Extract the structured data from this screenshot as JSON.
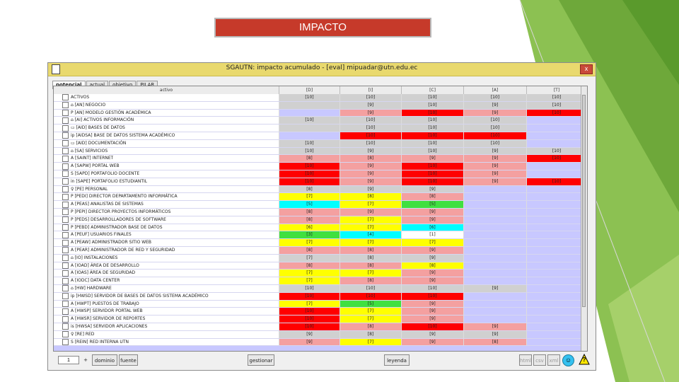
{
  "slide": {
    "title": "IMPACTO"
  },
  "window": {
    "title": "SGAUTN: impacto acumulado  -  [eval]  mipuadar@utn.edu.ec",
    "close_label": "x"
  },
  "tabs": [
    "potencial",
    "actual",
    "objetivo",
    "PILAR"
  ],
  "table": {
    "headers": [
      "activo",
      "[D]",
      "[I]",
      "[C]",
      "[A]",
      "[T]"
    ],
    "rows": [
      {
        "label": "ACTIVOS",
        "vals": [
          "[10]",
          "[10]",
          "[10]",
          "[10]",
          "[10]"
        ],
        "colors": [
          "#d0d0d0",
          "#d0d0d0",
          "#d0d0d0",
          "#d0d0d0",
          "#d0d0d0"
        ]
      },
      {
        "label": "  ⌂ [AN] NEGOCIO",
        "vals": [
          "",
          "[9]",
          "[10]",
          "[9]",
          "[10]"
        ],
        "colors": [
          "#d0d0d0",
          "#d0d0d0",
          "#d0d0d0",
          "#d0d0d0",
          "#d0d0d0"
        ]
      },
      {
        "label": "      P  [AN] MODELO GESTIÓN ACADÉMICA",
        "vals": [
          "",
          "[9]",
          "[10]",
          "[9]",
          "[10]"
        ],
        "colors": [
          "#c8c8ff",
          "#f4a0a0",
          "#ff0000",
          "#f4a0a0",
          "#ff0000"
        ]
      },
      {
        "label": "  ⌂ [AI] ACTIVOS INFORMACIÓN",
        "vals": [
          "[10]",
          "[10]",
          "[10]",
          "[10]",
          ""
        ],
        "colors": [
          "#d0d0d0",
          "#d0d0d0",
          "#d0d0d0",
          "#d0d0d0",
          "#c8c8ff"
        ]
      },
      {
        "label": "    ▭ [AID] BASES DE DATOS",
        "vals": [
          "",
          "[10]",
          "[10]",
          "[10]",
          ""
        ],
        "colors": [
          "#d0d0d0",
          "#d0d0d0",
          "#d0d0d0",
          "#d0d0d0",
          "#c8c8ff"
        ]
      },
      {
        "label": "        ip  [AIDSA] BASE DE DATOS SISTEMA ACADÉMICO",
        "vals": [
          "",
          "[10]",
          "[10]",
          "[10]",
          ""
        ],
        "colors": [
          "#c8c8ff",
          "#ff0000",
          "#ff0000",
          "#ff0000",
          "#c8c8ff"
        ]
      },
      {
        "label": "    ▭ [AID] DOCUMENTACIÓN",
        "vals": [
          "[10]",
          "[10]",
          "[10]",
          "[10]",
          ""
        ],
        "colors": [
          "#d0d0d0",
          "#d0d0d0",
          "#d0d0d0",
          "#d0d0d0",
          "#c8c8ff"
        ]
      },
      {
        "label": "  ⌂ [SA] SERVICIOS",
        "vals": [
          "[10]",
          "[9]",
          "[10]",
          "[9]",
          "[10]"
        ],
        "colors": [
          "#d0d0d0",
          "#d0d0d0",
          "#d0d0d0",
          "#d0d0d0",
          "#d0d0d0"
        ]
      },
      {
        "label": "      A  [SAINT] INTERNET",
        "vals": [
          "[8]",
          "[8]",
          "[9]",
          "[9]",
          "[10]"
        ],
        "colors": [
          "#f4a0a0",
          "#f4a0a0",
          "#f4a0a0",
          "#f4a0a0",
          "#ff0000"
        ]
      },
      {
        "label": "      A  [SAPW] PORTAL WEB",
        "vals": [
          "[10]",
          "[9]",
          "[10]",
          "[9]",
          ""
        ],
        "colors": [
          "#ff0000",
          "#f4a0a0",
          "#ff0000",
          "#f4a0a0",
          "#c8c8ff"
        ]
      },
      {
        "label": "      S  [SAPD] PORTAFOLIO DOCENTE",
        "vals": [
          "[10]",
          "[9]",
          "[10]",
          "[9]",
          ""
        ],
        "colors": [
          "#ff0000",
          "#f4a0a0",
          "#ff0000",
          "#f4a0a0",
          "#c8c8ff"
        ]
      },
      {
        "label": "      in [SAPE] PORTAFOLIO ESTUDIANTIL",
        "vals": [
          "[10]",
          "[9]",
          "[10]",
          "[9]",
          "[10]"
        ],
        "colors": [
          "#ff0000",
          "#f4a0a0",
          "#ff0000",
          "#f4a0a0",
          "#ff0000"
        ]
      },
      {
        "label": "  ♀ [PE] PERSONAL",
        "vals": [
          "[8]",
          "[9]",
          "[9]",
          "",
          ""
        ],
        "colors": [
          "#d0d0d0",
          "#d0d0d0",
          "#d0d0d0",
          "#c8c8ff",
          "#c8c8ff"
        ]
      },
      {
        "label": "      P  [PEDI] DIRECTOR DEPARTAMENTO INFORMÁTICA",
        "vals": [
          "[7]",
          "[8]",
          "[8]",
          "",
          ""
        ],
        "colors": [
          "#ffff00",
          "#ffff00",
          "#f4a0a0",
          "#c8c8ff",
          "#c8c8ff"
        ]
      },
      {
        "label": "      A  [PEAS] ANALISTAS DE SISTEMAS",
        "vals": [
          "[5]",
          "[7]",
          "[5]",
          "",
          ""
        ],
        "colors": [
          "#00ffff",
          "#ffff00",
          "#40e040",
          "#c8c8ff",
          "#c8c8ff"
        ]
      },
      {
        "label": "      P  [PEPI] DIRECTOR PROYECTOS INFORMÁTICOS",
        "vals": [
          "[8]",
          "[9]",
          "[9]",
          "",
          ""
        ],
        "colors": [
          "#f4a0a0",
          "#f4a0a0",
          "#f4a0a0",
          "#c8c8ff",
          "#c8c8ff"
        ]
      },
      {
        "label": "      P  [PEDS] DESARROLLADORES DE SOFTWARE",
        "vals": [
          "[8]",
          "[7]",
          "[9]",
          "",
          ""
        ],
        "colors": [
          "#f4a0a0",
          "#ffff00",
          "#f4a0a0",
          "#c8c8ff",
          "#c8c8ff"
        ]
      },
      {
        "label": "      P  [PEBD] ADMINISTRADOR BASE DE DATOS",
        "vals": [
          "[6]",
          "[7]",
          "[6]",
          "",
          ""
        ],
        "colors": [
          "#ffff00",
          "#ffff00",
          "#00ffff",
          "#c8c8ff",
          "#c8c8ff"
        ]
      },
      {
        "label": "      A  [PEUF] USUARIOS FINALES",
        "vals": [
          "[3]",
          "[4]",
          "[1]",
          "",
          ""
        ],
        "colors": [
          "#40e040",
          "#00ffff",
          "#ffffff",
          "#c8c8ff",
          "#c8c8ff"
        ]
      },
      {
        "label": "      A  [PEAW] ADMINISTRADOR SITIO WEB",
        "vals": [
          "[7]",
          "[7]",
          "[7]",
          "",
          ""
        ],
        "colors": [
          "#ffff00",
          "#ffff00",
          "#ffff00",
          "#c8c8ff",
          "#c8c8ff"
        ]
      },
      {
        "label": "      A  [PEAR] ADMINISTRADOR DE RED Y SEGURIDAD",
        "vals": [
          "[8]",
          "[8]",
          "[9]",
          "",
          ""
        ],
        "colors": [
          "#f4a0a0",
          "#f4a0a0",
          "#f4a0a0",
          "#c8c8ff",
          "#c8c8ff"
        ]
      },
      {
        "label": "  ⌂ [IO] INSTALACIONES",
        "vals": [
          "[7]",
          "[8]",
          "[9]",
          "",
          ""
        ],
        "colors": [
          "#d0d0d0",
          "#d0d0d0",
          "#d0d0d0",
          "#c8c8ff",
          "#c8c8ff"
        ]
      },
      {
        "label": "      A  [IOAD] ÁREA DE DESARROLLO",
        "vals": [
          "[8]",
          "[8]",
          "[8]",
          "",
          ""
        ],
        "colors": [
          "#f4a0a0",
          "#f4a0a0",
          "#ffff00",
          "#c8c8ff",
          "#c8c8ff"
        ]
      },
      {
        "label": "      A  [IOAS] ÁREA DE SEGURIDAD",
        "vals": [
          "[7]",
          "[7]",
          "[9]",
          "",
          ""
        ],
        "colors": [
          "#ffff00",
          "#ffff00",
          "#f4a0a0",
          "#c8c8ff",
          "#c8c8ff"
        ]
      },
      {
        "label": "      A  [IODC] DATA CENTER",
        "vals": [
          "[7]",
          "[8]",
          "[9]",
          "",
          ""
        ],
        "colors": [
          "#ffff00",
          "#f4a0a0",
          "#f4a0a0",
          "#c8c8ff",
          "#c8c8ff"
        ]
      },
      {
        "label": "  ⌂ [HW] HARDWARE",
        "vals": [
          "[10]",
          "[10]",
          "[10]",
          "[9]",
          ""
        ],
        "colors": [
          "#d0d0d0",
          "#d0d0d0",
          "#d0d0d0",
          "#d0d0d0",
          "#c8c8ff"
        ]
      },
      {
        "label": "      ip [HWSD] SERVIDOR DE BASES DE DATOS SISTEMA ACADÉMICO",
        "vals": [
          "[10]",
          "[10]",
          "[10]",
          "",
          ""
        ],
        "colors": [
          "#ff0000",
          "#ff0000",
          "#ff0000",
          "#c8c8ff",
          "#c8c8ff"
        ]
      },
      {
        "label": "      A  [HWPT] PUESTOS DE TRABAJO",
        "vals": [
          "[7]",
          "[5]",
          "[9]",
          "",
          ""
        ],
        "colors": [
          "#ffff00",
          "#40e040",
          "#f4a0a0",
          "#c8c8ff",
          "#c8c8ff"
        ]
      },
      {
        "label": "      A  [HWSP] SERVIDOR PORTAL WEB",
        "vals": [
          "[10]",
          "[7]",
          "[9]",
          "",
          ""
        ],
        "colors": [
          "#ff0000",
          "#ffff00",
          "#f4a0a0",
          "#c8c8ff",
          "#c8c8ff"
        ]
      },
      {
        "label": "      A  [HWSR] SERVIDOR DE REPORTES",
        "vals": [
          "[10]",
          "[7]",
          "[9]",
          "",
          ""
        ],
        "colors": [
          "#ff0000",
          "#ffff00",
          "#f4a0a0",
          "#c8c8ff",
          "#c8c8ff"
        ]
      },
      {
        "label": "      is [HWSA] SERVIDOR APLICACIONES",
        "vals": [
          "[10]",
          "[8]",
          "[10]",
          "[9]",
          ""
        ],
        "colors": [
          "#ff0000",
          "#f4a0a0",
          "#ff0000",
          "#f4a0a0",
          "#c8c8ff"
        ]
      },
      {
        "label": "  ♀ [RE] RED",
        "vals": [
          "[9]",
          "[8]",
          "[9]",
          "[9]",
          ""
        ],
        "colors": [
          "#d0d0d0",
          "#d0d0d0",
          "#d0d0d0",
          "#d0d0d0",
          "#c8c8ff"
        ]
      },
      {
        "label": "      S  [REIN] RED INTERNA UTN",
        "vals": [
          "[9]",
          "[7]",
          "[9]",
          "[8]",
          ""
        ],
        "colors": [
          "#f4a0a0",
          "#ffff00",
          "#f4a0a0",
          "#f4a0a0",
          "#c8c8ff"
        ]
      }
    ]
  },
  "toolbar": {
    "spin_value": "1",
    "plus": "+",
    "dominio": "dominio",
    "fuente": "fuente",
    "gestionar": "gestionar",
    "leyenda": "leyenda",
    "html": "html",
    "csv": "csv",
    "xml": "xml",
    "smile": "☺",
    "help": "?"
  }
}
